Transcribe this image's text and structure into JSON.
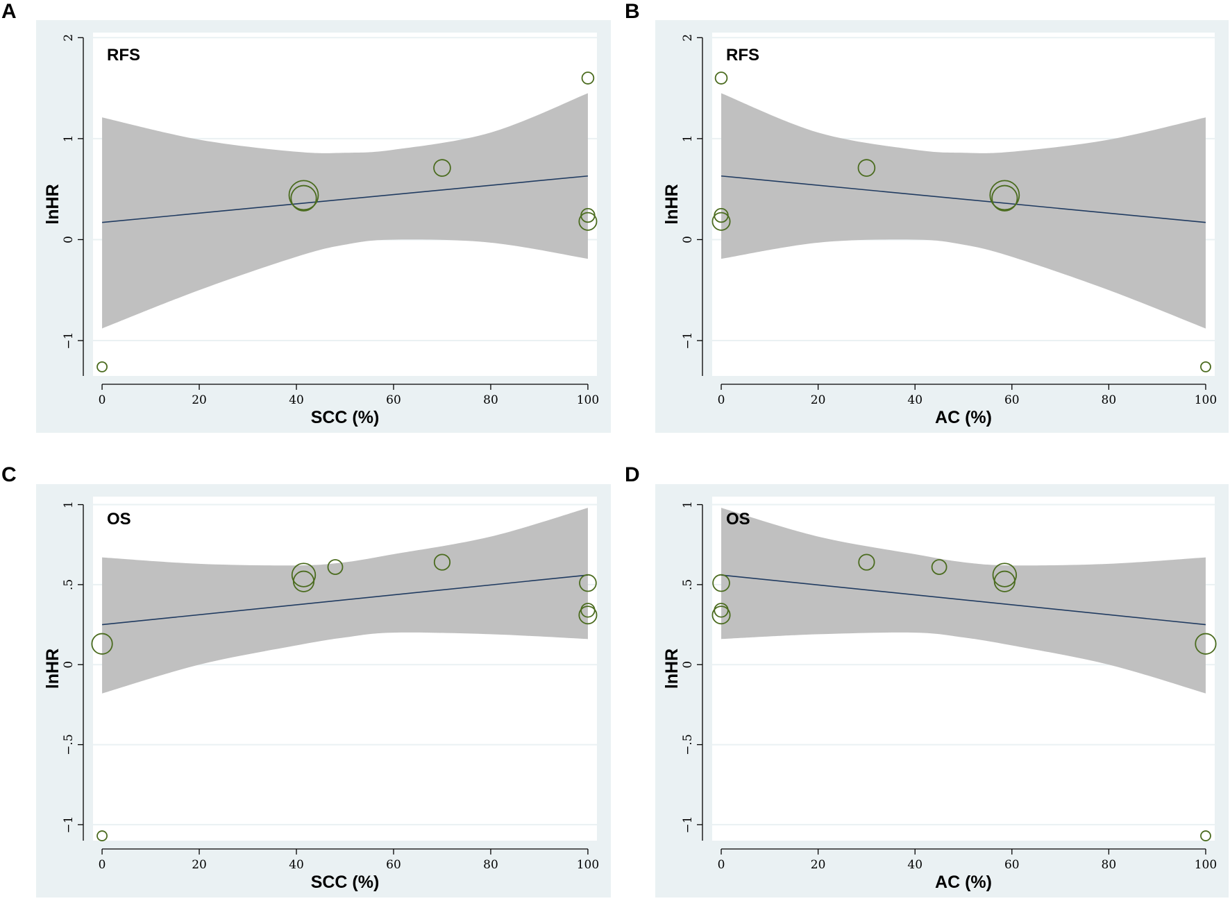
{
  "chart_data": [
    {
      "panel_label": "A",
      "type": "scatter",
      "title": "RFS",
      "xlabel": "SCC (%)",
      "ylabel": "lnHR",
      "xlim": [
        0,
        100
      ],
      "ylim": [
        -1.35,
        2.05
      ],
      "xticks": [
        0,
        20,
        40,
        60,
        80,
        100
      ],
      "xtick_labels": [
        "0",
        "20",
        "40",
        "60",
        "80",
        "100"
      ],
      "yticks": [
        -1,
        0,
        1,
        2
      ],
      "ytick_labels": [
        "−1",
        "0",
        "1",
        "2"
      ],
      "grid": true,
      "fit_line": {
        "x": [
          0,
          100
        ],
        "y": [
          0.17,
          0.63
        ]
      },
      "ci_band": {
        "x": [
          0,
          20,
          40,
          50,
          60,
          80,
          100
        ],
        "upper": [
          1.21,
          0.99,
          0.87,
          0.86,
          0.89,
          1.06,
          1.45
        ],
        "lower": [
          -0.88,
          -0.5,
          -0.17,
          -0.05,
          0.0,
          -0.03,
          -0.19
        ]
      },
      "points": [
        {
          "x": 0,
          "y": -1.26,
          "size": 1.0
        },
        {
          "x": 41.5,
          "y": 0.44,
          "size": 3.0
        },
        {
          "x": 41.5,
          "y": 0.41,
          "size": 2.6
        },
        {
          "x": 70,
          "y": 0.71,
          "size": 1.7
        },
        {
          "x": 100,
          "y": 1.6,
          "size": 1.2
        },
        {
          "x": 100,
          "y": 0.24,
          "size": 1.4
        },
        {
          "x": 100,
          "y": 0.18,
          "size": 1.8
        }
      ]
    },
    {
      "panel_label": "B",
      "type": "scatter",
      "title": "RFS",
      "xlabel": "AC (%)",
      "ylabel": "lnHR",
      "xlim": [
        0,
        100
      ],
      "ylim": [
        -1.35,
        2.05
      ],
      "xticks": [
        0,
        20,
        40,
        60,
        80,
        100
      ],
      "xtick_labels": [
        "0",
        "20",
        "40",
        "60",
        "80",
        "100"
      ],
      "yticks": [
        -1,
        0,
        1,
        2
      ],
      "ytick_labels": [
        "−1",
        "0",
        "1",
        "2"
      ],
      "grid": true,
      "fit_line": {
        "x": [
          0,
          100
        ],
        "y": [
          0.63,
          0.17
        ]
      },
      "ci_band": {
        "x": [
          0,
          20,
          40,
          50,
          60,
          80,
          100
        ],
        "upper": [
          1.45,
          1.06,
          0.89,
          0.86,
          0.87,
          0.99,
          1.21
        ],
        "lower": [
          -0.19,
          -0.03,
          0.0,
          -0.05,
          -0.17,
          -0.5,
          -0.88
        ]
      },
      "points": [
        {
          "x": 0,
          "y": 1.6,
          "size": 1.2
        },
        {
          "x": 0,
          "y": 0.24,
          "size": 1.4
        },
        {
          "x": 0,
          "y": 0.18,
          "size": 1.8
        },
        {
          "x": 30,
          "y": 0.71,
          "size": 1.7
        },
        {
          "x": 58.5,
          "y": 0.44,
          "size": 3.0
        },
        {
          "x": 58.5,
          "y": 0.41,
          "size": 2.6
        },
        {
          "x": 100,
          "y": -1.26,
          "size": 1.0
        }
      ]
    },
    {
      "panel_label": "C",
      "type": "scatter",
      "title": "OS",
      "xlabel": "SCC (%)",
      "ylabel": "lnHR",
      "xlim": [
        0,
        100
      ],
      "ylim": [
        -1.1,
        1.05
      ],
      "xticks": [
        0,
        20,
        40,
        60,
        80,
        100
      ],
      "xtick_labels": [
        "0",
        "20",
        "40",
        "60",
        "80",
        "100"
      ],
      "yticks": [
        -1,
        -0.5,
        0,
        0.5,
        1
      ],
      "ytick_labels": [
        "−1",
        "−.5",
        "0",
        ".5",
        "1"
      ],
      "grid": true,
      "fit_line": {
        "x": [
          0,
          100
        ],
        "y": [
          0.25,
          0.56
        ]
      },
      "ci_band": {
        "x": [
          0,
          20,
          40,
          50,
          60,
          80,
          100
        ],
        "upper": [
          0.67,
          0.63,
          0.62,
          0.64,
          0.69,
          0.8,
          0.98
        ],
        "lower": [
          -0.18,
          0.0,
          0.12,
          0.17,
          0.2,
          0.19,
          0.16
        ]
      },
      "points": [
        {
          "x": 0,
          "y": -1.07,
          "size": 1.0
        },
        {
          "x": 0,
          "y": 0.13,
          "size": 2.1
        },
        {
          "x": 41.5,
          "y": 0.56,
          "size": 2.4
        },
        {
          "x": 41.5,
          "y": 0.52,
          "size": 2.1
        },
        {
          "x": 48,
          "y": 0.61,
          "size": 1.5
        },
        {
          "x": 70,
          "y": 0.64,
          "size": 1.6
        },
        {
          "x": 100,
          "y": 0.51,
          "size": 1.7
        },
        {
          "x": 100,
          "y": 0.34,
          "size": 1.4
        },
        {
          "x": 100,
          "y": 0.31,
          "size": 1.8
        }
      ]
    },
    {
      "panel_label": "D",
      "type": "scatter",
      "title": "OS",
      "xlabel": "AC (%)",
      "ylabel": "lnHR",
      "xlim": [
        0,
        100
      ],
      "ylim": [
        -1.1,
        1.05
      ],
      "xticks": [
        0,
        20,
        40,
        60,
        80,
        100
      ],
      "xtick_labels": [
        "0",
        "20",
        "40",
        "60",
        "80",
        "100"
      ],
      "yticks": [
        -1,
        -0.5,
        0,
        0.5,
        1
      ],
      "ytick_labels": [
        "−1",
        "−.5",
        "0",
        ".5",
        "1"
      ],
      "grid": true,
      "fit_line": {
        "x": [
          0,
          100
        ],
        "y": [
          0.56,
          0.25
        ]
      },
      "ci_band": {
        "x": [
          0,
          20,
          40,
          50,
          60,
          80,
          100
        ],
        "upper": [
          0.98,
          0.8,
          0.69,
          0.64,
          0.62,
          0.63,
          0.67
        ],
        "lower": [
          0.16,
          0.19,
          0.2,
          0.17,
          0.12,
          0.0,
          -0.18
        ]
      },
      "points": [
        {
          "x": 0,
          "y": 0.51,
          "size": 1.7
        },
        {
          "x": 0,
          "y": 0.34,
          "size": 1.4
        },
        {
          "x": 0,
          "y": 0.31,
          "size": 1.8
        },
        {
          "x": 30,
          "y": 0.64,
          "size": 1.6
        },
        {
          "x": 45,
          "y": 0.61,
          "size": 1.5
        },
        {
          "x": 58.5,
          "y": 0.56,
          "size": 2.4
        },
        {
          "x": 58.5,
          "y": 0.52,
          "size": 2.1
        },
        {
          "x": 100,
          "y": 0.13,
          "size": 2.1
        },
        {
          "x": 100,
          "y": -1.07,
          "size": 1.0
        }
      ]
    }
  ]
}
